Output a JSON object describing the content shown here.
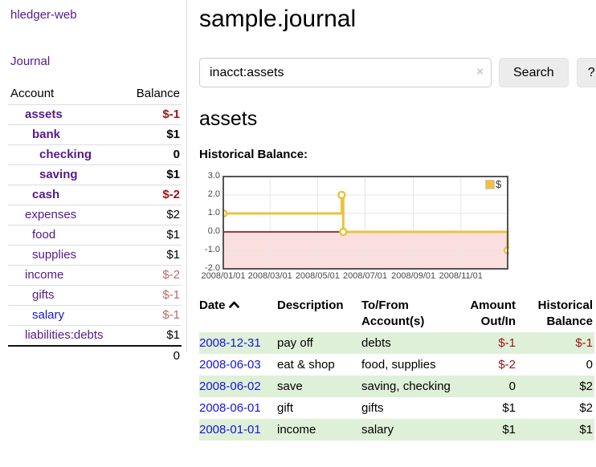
{
  "app": {
    "brand": "hledger-web"
  },
  "sidebar": {
    "journal_link": "Journal",
    "accounts": {
      "header_account": "Account",
      "header_balance": "Balance",
      "rows": [
        {
          "account": "assets",
          "balance": "$-1",
          "indent": 1,
          "bold": true,
          "balance_style": "neg-strong",
          "link_style": "purple"
        },
        {
          "account": "bank",
          "balance": "$1",
          "indent": 2,
          "bold": true,
          "balance_style": "pos-strong",
          "link_style": "purple"
        },
        {
          "account": "checking",
          "balance": "0",
          "indent": 3,
          "bold": true,
          "balance_style": "pos-strong",
          "link_style": "purple"
        },
        {
          "account": "saving",
          "balance": "$1",
          "indent": 3,
          "bold": true,
          "balance_style": "pos-strong",
          "link_style": "purple"
        },
        {
          "account": "cash",
          "balance": "$-2",
          "indent": 2,
          "bold": true,
          "balance_style": "neg-strong",
          "link_style": "purple"
        },
        {
          "account": "expenses",
          "balance": "$2",
          "indent": 1,
          "bold": false,
          "balance_style": "pos",
          "link_style": "purple"
        },
        {
          "account": "food",
          "balance": "$1",
          "indent": 2,
          "bold": false,
          "balance_style": "pos",
          "link_style": "purple"
        },
        {
          "account": "supplies",
          "balance": "$1",
          "indent": 2,
          "bold": false,
          "balance_style": "pos",
          "link_style": "purple"
        },
        {
          "account": "income",
          "balance": "$-2",
          "indent": 1,
          "bold": false,
          "balance_style": "neg-soft",
          "link_style": "purple"
        },
        {
          "account": "gifts",
          "balance": "$-1",
          "indent": 2,
          "bold": false,
          "balance_style": "neg-soft",
          "link_style": "purple"
        },
        {
          "account": "salary",
          "balance": "$-1",
          "indent": 2,
          "bold": false,
          "balance_style": "neg-soft",
          "link_style": "blue"
        },
        {
          "account": "liabilities:debts",
          "balance": "$1",
          "indent": 1,
          "bold": false,
          "balance_style": "pos",
          "link_style": "purple"
        }
      ],
      "total": "0"
    }
  },
  "main": {
    "title": "sample.journal",
    "search": {
      "value": "inacct:assets",
      "clear_icon": "×",
      "search_button": "Search",
      "help_button": "?"
    },
    "account_heading": "assets",
    "chart_title": "Historical Balance:"
  },
  "chart_data": {
    "type": "line",
    "subtype": "step",
    "title": "Historical Balance",
    "legend": [
      {
        "label": "$",
        "color": "#edc240"
      }
    ],
    "legend_position": "top-right",
    "series": [
      {
        "name": "$",
        "points": [
          {
            "x": "2008-01-01",
            "y": 1
          },
          {
            "x": "2008-06-01",
            "y": 2
          },
          {
            "x": "2008-06-03",
            "y": 0
          },
          {
            "x": "2008-12-31",
            "y": -1
          }
        ]
      }
    ],
    "ylim": [
      -2,
      3
    ],
    "yticks": [
      "3.0",
      "2.0",
      "1.0",
      "0.0",
      "-1.0",
      "-2.0"
    ],
    "xticks": [
      "2008/01/01",
      "2008/03/01",
      "2008/05/01",
      "2008/07/01",
      "2008/09/01",
      "2008/11/01"
    ],
    "x_range": [
      "2008-01-01",
      "2008-12-31"
    ],
    "grid": true,
    "colors": {
      "line": "#e9c340",
      "marker_fill": "#ffffff",
      "negative_region_fill": "#fbdfdf",
      "zero_line": "#7a0000",
      "gridline": "#e5e5e5",
      "border": "#545454"
    }
  },
  "register": {
    "headers": {
      "date": "Date",
      "description": "Description",
      "accounts": "To/From Account(s)",
      "amount": "Amount Out/In",
      "balance": "Historical Balance"
    },
    "sort": {
      "column": "date",
      "direction": "asc"
    },
    "rows": [
      {
        "date": "2008-12-31",
        "description": "pay off",
        "accounts": "debts",
        "amount": "$-1",
        "amount_negative": true,
        "balance": "$-1",
        "balance_negative": true
      },
      {
        "date": "2008-06-03",
        "description": "eat & shop",
        "accounts": "food, supplies",
        "amount": "$-2",
        "amount_negative": true,
        "balance": "0",
        "balance_negative": false
      },
      {
        "date": "2008-06-02",
        "description": "save",
        "accounts": "saving, checking",
        "amount": "0",
        "amount_negative": false,
        "balance": "$2",
        "balance_negative": false
      },
      {
        "date": "2008-06-01",
        "description": "gift",
        "accounts": "gifts",
        "amount": "$1",
        "amount_negative": false,
        "balance": "$2",
        "balance_negative": false
      },
      {
        "date": "2008-01-01",
        "description": "income",
        "accounts": "salary",
        "amount": "$1",
        "amount_negative": false,
        "balance": "$1",
        "balance_negative": false
      }
    ]
  },
  "ui_colors": {
    "link_purple": "#551a8b",
    "link_blue": "#1414e0",
    "negative_strong": "#9e1212",
    "negative_soft": "#b86a6a",
    "row_stripe_green": "#dff0d8",
    "divider": "#dddddd"
  }
}
